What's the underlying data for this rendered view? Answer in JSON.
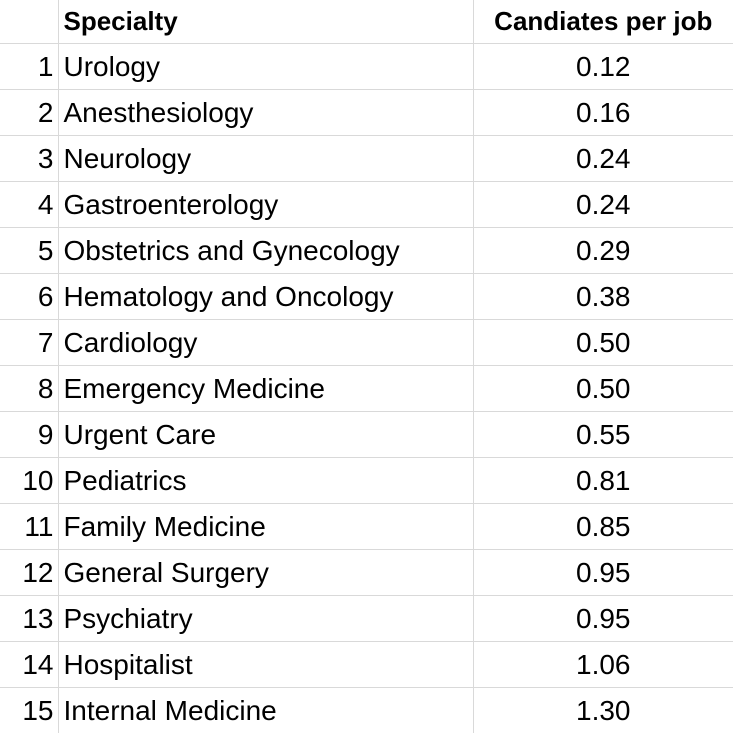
{
  "table": {
    "headers": {
      "index": "",
      "specialty": "Specialty",
      "value": "Candiates per job"
    },
    "rows": [
      {
        "index": "1",
        "specialty": "Urology",
        "value": "0.12"
      },
      {
        "index": "2",
        "specialty": "Anesthesiology",
        "value": "0.16"
      },
      {
        "index": "3",
        "specialty": "Neurology",
        "value": "0.24"
      },
      {
        "index": "4",
        "specialty": "Gastroenterology",
        "value": "0.24"
      },
      {
        "index": "5",
        "specialty": "Obstetrics and Gynecology",
        "value": "0.29"
      },
      {
        "index": "6",
        "specialty": "Hematology and Oncology",
        "value": "0.38"
      },
      {
        "index": "7",
        "specialty": "Cardiology",
        "value": "0.50"
      },
      {
        "index": "8",
        "specialty": "Emergency Medicine",
        "value": "0.50"
      },
      {
        "index": "9",
        "specialty": "Urgent Care",
        "value": "0.55"
      },
      {
        "index": "10",
        "specialty": "Pediatrics",
        "value": "0.81"
      },
      {
        "index": "11",
        "specialty": "Family Medicine",
        "value": "0.85"
      },
      {
        "index": "12",
        "specialty": "General Surgery",
        "value": "0.95"
      },
      {
        "index": "13",
        "specialty": "Psychiatry",
        "value": "0.95"
      },
      {
        "index": "14",
        "specialty": "Hospitalist",
        "value": "1.06"
      },
      {
        "index": "15",
        "specialty": "Internal Medicine",
        "value": "1.30"
      }
    ]
  }
}
